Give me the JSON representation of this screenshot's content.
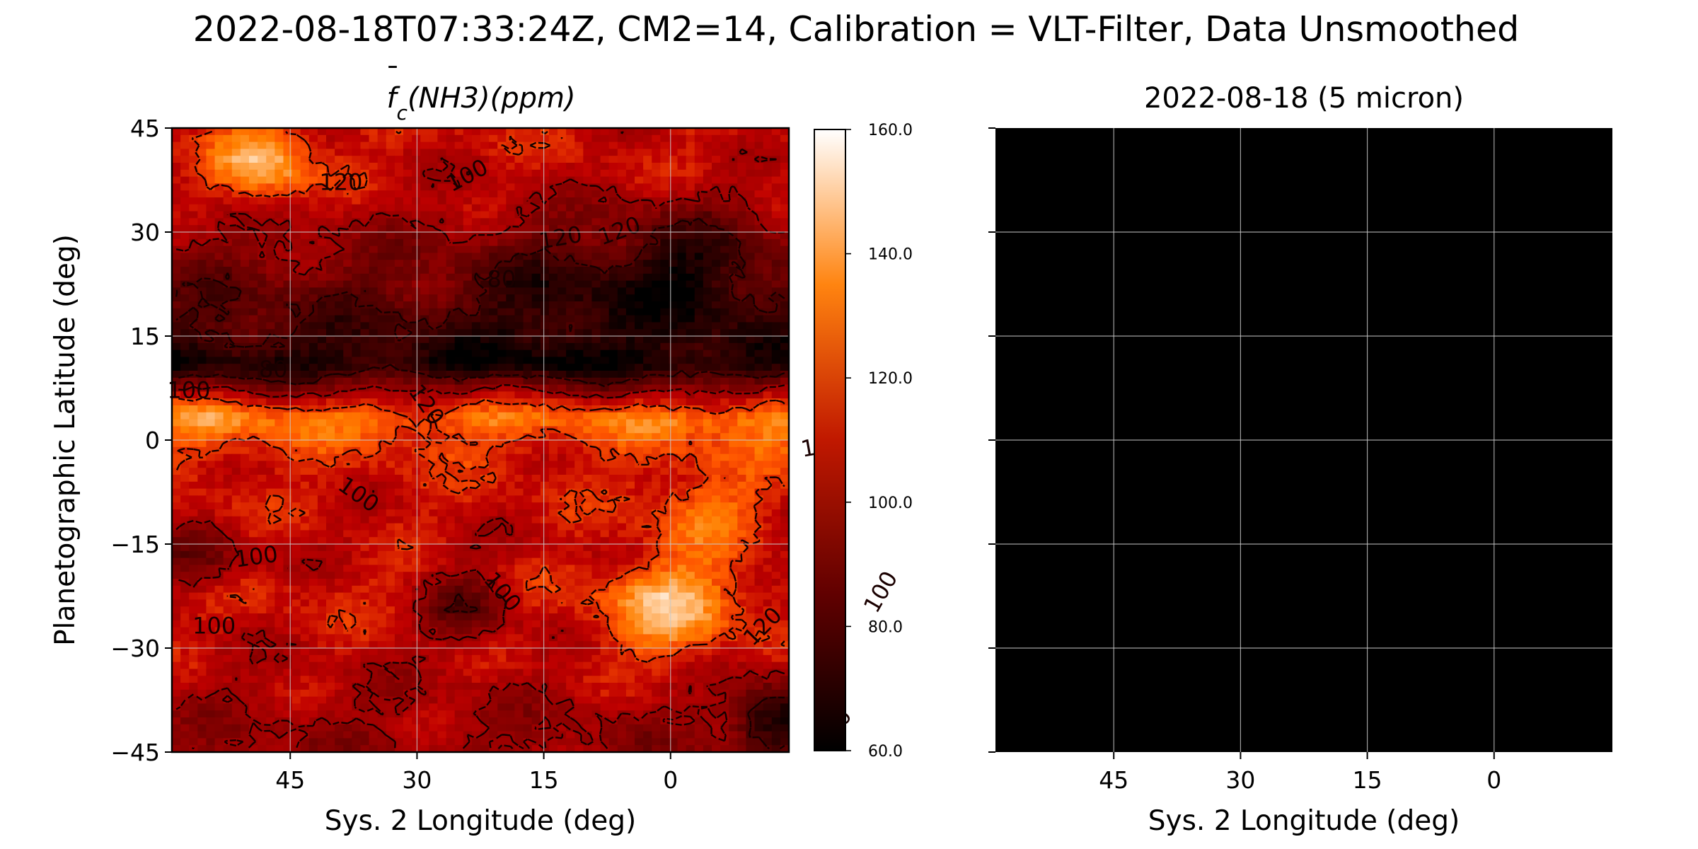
{
  "figure": {
    "suptitle": "2022-08-18T07:33:24Z, CM2=14, Calibration = VLT-Filter, Data Unsmoothed"
  },
  "chart_data": [
    {
      "type": "heatmap",
      "title": "f̄c(NH3)(ppm)",
      "title_parts": {
        "f": "f",
        "sub": "c",
        "rest": "(NH3)(ppm)"
      },
      "xlabel": "Sys. 2 Longitude (deg)",
      "ylabel": "Planetographic Latitude (deg)",
      "xlim": [
        59,
        -14
      ],
      "ylim": [
        -45,
        45
      ],
      "x_ticks": [
        45,
        30,
        15,
        0
      ],
      "x_tick_labels": [
        "45",
        "30",
        "15",
        "0"
      ],
      "y_ticks": [
        45,
        30,
        15,
        0,
        -15,
        -30,
        -45
      ],
      "y_tick_labels": [
        "45",
        "30",
        "15",
        "0",
        "−15",
        "−30",
        "−45"
      ],
      "grid": true,
      "colormap": "gist_heat",
      "colorbar": {
        "range": [
          60,
          160
        ],
        "ticks": [
          160,
          140,
          120,
          100,
          80,
          60
        ],
        "tick_labels": [
          "160.0",
          "140.0",
          "120.0",
          "100.0",
          "80.0",
          "60.0"
        ]
      },
      "zonal_profile": [
        {
          "lat": 45,
          "ppm": 112
        },
        {
          "lat": 38,
          "ppm": 110
        },
        {
          "lat": 30,
          "ppm": 100
        },
        {
          "lat": 24,
          "ppm": 90
        },
        {
          "lat": 18,
          "ppm": 82
        },
        {
          "lat": 14,
          "ppm": 74
        },
        {
          "lat": 11,
          "ppm": 66
        },
        {
          "lat": 9,
          "ppm": 80
        },
        {
          "lat": 6,
          "ppm": 110
        },
        {
          "lat": 3,
          "ppm": 132
        },
        {
          "lat": 0,
          "ppm": 122
        },
        {
          "lat": -4,
          "ppm": 114
        },
        {
          "lat": -10,
          "ppm": 112
        },
        {
          "lat": -16,
          "ppm": 108
        },
        {
          "lat": -22,
          "ppm": 114
        },
        {
          "lat": -28,
          "ppm": 110
        },
        {
          "lat": -36,
          "ppm": 104
        },
        {
          "lat": -45,
          "ppm": 98
        }
      ],
      "features": [
        {
          "lon": 48,
          "lat": 40,
          "ppm": 145,
          "r": 6
        },
        {
          "lon": 0,
          "lat": -24,
          "ppm": 145,
          "r": 8
        },
        {
          "lon": -4,
          "lat": -10,
          "ppm": 132,
          "r": 6
        },
        {
          "lon": 54,
          "lat": 3,
          "ppm": 138,
          "r": 6
        },
        {
          "lon": -10,
          "lat": 3,
          "ppm": 140,
          "r": 6
        },
        {
          "lon": 24,
          "lat": -24,
          "ppm": 84,
          "r": 5
        },
        {
          "lon": 56,
          "lat": -18,
          "ppm": 88,
          "r": 5
        },
        {
          "lon": -12,
          "lat": -40,
          "ppm": 64,
          "r": 5
        },
        {
          "lon": 14,
          "lat": 22,
          "ppm": 72,
          "r": 9
        },
        {
          "lon": -2,
          "lat": 25,
          "ppm": 66,
          "r": 9
        }
      ],
      "contour_labels": [
        {
          "text": "120",
          "lon": 39,
          "lat": 37,
          "rotation": 0
        },
        {
          "text": "100",
          "lon": 24,
          "lat": 38,
          "rotation": -28
        },
        {
          "text": "120",
          "lon": 13,
          "lat": 29,
          "rotation": -10
        },
        {
          "text": "120",
          "lon": 6,
          "lat": 30,
          "rotation": -20
        },
        {
          "text": "80",
          "lon": 20,
          "lat": 23,
          "rotation": 0
        },
        {
          "text": "80",
          "lon": 47,
          "lat": 10,
          "rotation": 0
        },
        {
          "text": "100",
          "lon": 57,
          "lat": 7,
          "rotation": 0
        },
        {
          "text": "120",
          "lon": 29,
          "lat": 5,
          "rotation": 55
        },
        {
          "text": "120",
          "lon": -18,
          "lat": -1,
          "rotation": -10
        },
        {
          "text": "100",
          "lon": 37,
          "lat": -8,
          "rotation": 35
        },
        {
          "text": "100",
          "lon": 49,
          "lat": -17,
          "rotation": -8
        },
        {
          "text": "100",
          "lon": 20,
          "lat": -22,
          "rotation": 50
        },
        {
          "text": "100",
          "lon": 54,
          "lat": -27,
          "rotation": 0
        },
        {
          "text": "120",
          "lon": -11,
          "lat": -27,
          "rotation": -45
        },
        {
          "text": "100",
          "lon": -25,
          "lat": -22,
          "rotation": -60
        },
        {
          "text": "80",
          "lon": -20,
          "lat": -41,
          "rotation": -60
        }
      ]
    },
    {
      "type": "heatmap",
      "title": "2022-08-18 (5 micron)",
      "xlabel": "Sys. 2 Longitude (deg)",
      "ylabel": "",
      "xlim": [
        59,
        -14
      ],
      "ylim": [
        -45,
        45
      ],
      "x_ticks": [
        45,
        30,
        15,
        0
      ],
      "x_tick_labels": [
        "45",
        "30",
        "15",
        "0"
      ],
      "y_ticks": [
        45,
        30,
        15,
        0,
        -15,
        -30,
        -45
      ],
      "grid": true,
      "background": "#000000"
    }
  ]
}
